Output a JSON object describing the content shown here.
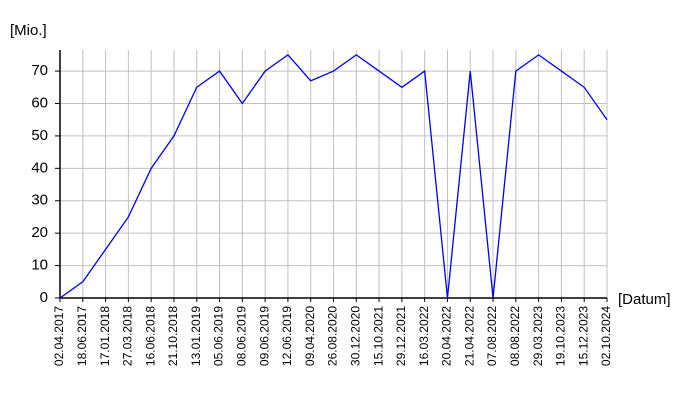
{
  "chart_data": {
    "type": "line",
    "y_label": "[Mio.]",
    "x_label": "[Datum]",
    "categories": [
      "02.04.2017",
      "18.06.2017",
      "17.01.2018",
      "27.03.2018",
      "16.06.2018",
      "21.10.2018",
      "13.01.2019",
      "05.06.2019",
      "08.06.2019",
      "09.06.2019",
      "12.06.2019",
      "09.04.2020",
      "26.08.2020",
      "30.12.2020",
      "15.10.2021",
      "29.12.2021",
      "16.03.2022",
      "20.04.2022",
      "21.04.2022",
      "07.08.2022",
      "08.08.2022",
      "29.03.2023",
      "19.10.2023",
      "15.12.2023",
      "02.10.2024"
    ],
    "values": [
      0,
      5,
      15,
      25,
      40,
      50,
      65,
      70,
      60,
      70,
      75,
      67,
      70,
      75,
      70,
      65,
      70,
      0,
      70,
      0,
      70,
      75,
      70,
      65,
      55
    ],
    "color": "#0000ee",
    "ylim": [
      0,
      76.5
    ],
    "yticks": [
      0,
      10,
      20,
      30,
      40,
      50,
      60,
      70
    ],
    "grid": true
  }
}
